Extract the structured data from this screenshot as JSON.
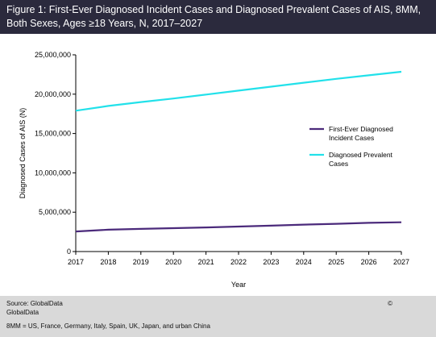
{
  "figure": {
    "title": "Figure 1: First-Ever Diagnosed Incident Cases and Diagnosed Prevalent Cases of AIS, 8MM, Both Sexes, Ages ≥18 Years, N, 2017–2027"
  },
  "chart_data": {
    "type": "line",
    "title": "",
    "xlabel": "Year",
    "ylabel": "Diagnosed Cases of AIS (N)",
    "ylim": [
      0,
      25000000
    ],
    "yticks": [
      0,
      5000000,
      10000000,
      15000000,
      20000000,
      25000000
    ],
    "ytick_labels": [
      "0",
      "5,000,000",
      "10,000,000",
      "15,000,000",
      "20,000,000",
      "25,000,000"
    ],
    "x": [
      "2017",
      "2018",
      "2019",
      "2020",
      "2021",
      "2022",
      "2023",
      "2024",
      "2025",
      "2026",
      "2027"
    ],
    "grid": false,
    "legend_position": "right",
    "series": [
      {
        "name": "First-Ever Diagnosed Incident Cases",
        "color": "#4b2a7b",
        "values": [
          2550000,
          2780000,
          2880000,
          2970000,
          3060000,
          3180000,
          3290000,
          3420000,
          3520000,
          3650000,
          3720000
        ]
      },
      {
        "name": "Diagnosed Prevalent Cases",
        "color": "#22e1ea",
        "values": [
          17900000,
          18500000,
          19000000,
          19450000,
          19950000,
          20450000,
          20950000,
          21450000,
          21950000,
          22400000,
          22850000
        ]
      }
    ]
  },
  "footer": {
    "source": "Source: GlobalData",
    "copyright": "©",
    "publisher": "GlobalData",
    "note": "8MM = US, France, Germany, Italy, Spain, UK, Japan, and urban China"
  }
}
